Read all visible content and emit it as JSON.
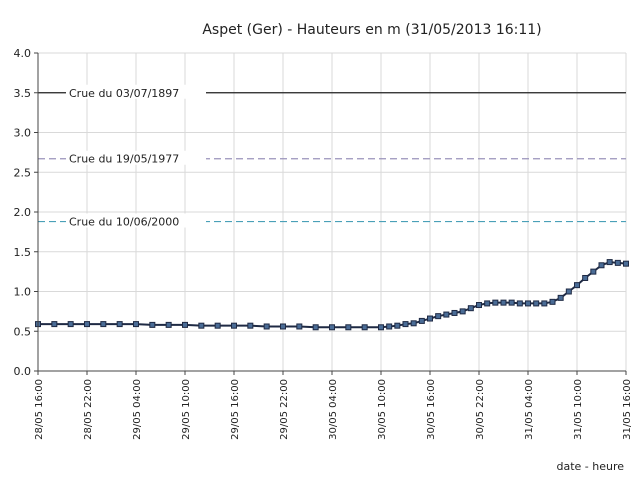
{
  "chart_data": {
    "type": "line",
    "title": "Aspet (Ger) - Hauteurs en m (31/05/2013 16:11)",
    "xlabel": "date - heure",
    "ylabel": "",
    "ylim": [
      0,
      4.0
    ],
    "yticks": [
      "0.0",
      "0.5",
      "1.0",
      "1.5",
      "2.0",
      "2.5",
      "3.0",
      "3.5",
      "4.0"
    ],
    "xlim_hours": [
      0,
      72
    ],
    "xticks": [
      {
        "label": "28/05 16:00",
        "hour": 0
      },
      {
        "label": "28/05 22:00",
        "hour": 6
      },
      {
        "label": "29/05 04:00",
        "hour": 12
      },
      {
        "label": "29/05 10:00",
        "hour": 18
      },
      {
        "label": "29/05 16:00",
        "hour": 24
      },
      {
        "label": "29/05 22:00",
        "hour": 30
      },
      {
        "label": "30/05 04:00",
        "hour": 36
      },
      {
        "label": "30/05 10:00",
        "hour": 42
      },
      {
        "label": "30/05 16:00",
        "hour": 48
      },
      {
        "label": "30/05 22:00",
        "hour": 54
      },
      {
        "label": "31/05 04:00",
        "hour": 60
      },
      {
        "label": "31/05 10:00",
        "hour": 66
      },
      {
        "label": "31/05 16:00",
        "hour": 72
      }
    ],
    "grid": true,
    "reference_lines": [
      {
        "label": "Crue du 03/07/1897",
        "value": 3.5,
        "color": "#222222",
        "style": "solid"
      },
      {
        "label": "Crue du 19/05/1977",
        "value": 2.67,
        "color": "#9a93bb",
        "style": "dashed"
      },
      {
        "label": "Crue du 10/06/2000",
        "value": 1.88,
        "color": "#4aa0b8",
        "style": "dashed"
      }
    ],
    "series": [
      {
        "color": "#1f2a44",
        "points": [
          [
            0,
            0.59
          ],
          [
            2,
            0.59
          ],
          [
            4,
            0.59
          ],
          [
            6,
            0.59
          ],
          [
            8,
            0.59
          ],
          [
            10,
            0.59
          ],
          [
            12,
            0.59
          ],
          [
            14,
            0.58
          ],
          [
            16,
            0.58
          ],
          [
            18,
            0.58
          ],
          [
            20,
            0.57
          ],
          [
            22,
            0.57
          ],
          [
            24,
            0.57
          ],
          [
            26,
            0.57
          ],
          [
            28,
            0.56
          ],
          [
            30,
            0.56
          ],
          [
            32,
            0.56
          ],
          [
            34,
            0.55
          ],
          [
            36,
            0.55
          ],
          [
            38,
            0.55
          ],
          [
            40,
            0.55
          ],
          [
            42,
            0.55
          ],
          [
            43,
            0.56
          ],
          [
            44,
            0.57
          ],
          [
            45,
            0.59
          ],
          [
            46,
            0.6
          ],
          [
            47,
            0.63
          ],
          [
            48,
            0.66
          ],
          [
            49,
            0.69
          ],
          [
            50,
            0.71
          ],
          [
            51,
            0.73
          ],
          [
            52,
            0.75
          ],
          [
            53,
            0.79
          ],
          [
            54,
            0.83
          ],
          [
            55,
            0.85
          ],
          [
            56,
            0.86
          ],
          [
            57,
            0.86
          ],
          [
            58,
            0.86
          ],
          [
            59,
            0.85
          ],
          [
            60,
            0.85
          ],
          [
            61,
            0.85
          ],
          [
            62,
            0.85
          ],
          [
            63,
            0.87
          ],
          [
            64,
            0.92
          ],
          [
            65,
            1.0
          ],
          [
            66,
            1.08
          ],
          [
            67,
            1.17
          ],
          [
            68,
            1.25
          ],
          [
            69,
            1.33
          ],
          [
            70,
            1.37
          ],
          [
            71,
            1.36
          ],
          [
            72,
            1.35
          ]
        ]
      }
    ]
  }
}
